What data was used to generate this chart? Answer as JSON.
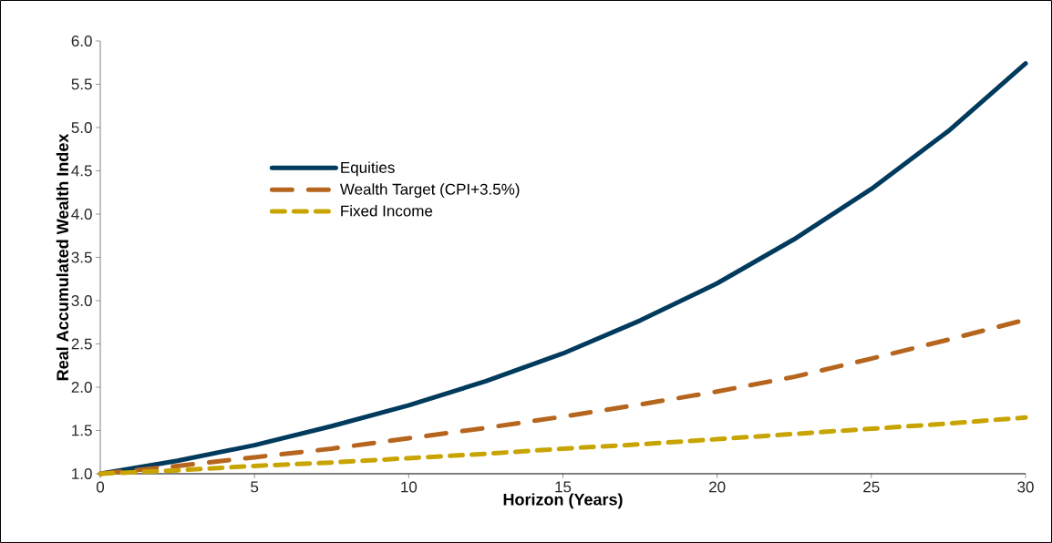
{
  "chart_data": {
    "type": "line",
    "xlabel": "Horizon (Years)",
    "ylabel": "Real Accumulated Wealth Index",
    "x": [
      0,
      2.5,
      5,
      7.5,
      10,
      12.5,
      15,
      17.5,
      20,
      22.5,
      25,
      27.5,
      30
    ],
    "series": [
      {
        "name": "Equities",
        "color": "#003a5c",
        "line_style": "solid",
        "values": [
          1.0,
          1.15,
          1.33,
          1.55,
          1.79,
          2.07,
          2.39,
          2.77,
          3.2,
          3.71,
          4.29,
          4.96,
          5.74
        ]
      },
      {
        "name": "Wealth Target (CPI+3.5%)",
        "color": "#b5651d",
        "line_style": "dashdot",
        "values": [
          1.0,
          1.09,
          1.19,
          1.29,
          1.41,
          1.53,
          1.66,
          1.8,
          1.95,
          2.12,
          2.33,
          2.55,
          2.78
        ]
      },
      {
        "name": "Fixed Income",
        "color": "#c8a400",
        "line_style": "dashed",
        "values": [
          1.0,
          1.04,
          1.09,
          1.13,
          1.18,
          1.23,
          1.29,
          1.34,
          1.4,
          1.46,
          1.52,
          1.58,
          1.65
        ]
      }
    ],
    "xlim": [
      0,
      30
    ],
    "xticks": [
      0,
      5,
      10,
      15,
      20,
      25,
      30
    ],
    "ylim": [
      1,
      6
    ],
    "yticks": [
      {
        "value": 1,
        "label": "1.0"
      },
      {
        "value": 1.5,
        "label": "1.5"
      },
      {
        "value": 2,
        "label": "2.0"
      },
      {
        "value": 2.5,
        "label": "2.5"
      },
      {
        "value": 3,
        "label": "3.0"
      },
      {
        "value": 3.5,
        "label": "3.5"
      },
      {
        "value": 4,
        "label": "4.0"
      },
      {
        "value": 4.5,
        "label": "4.5"
      },
      {
        "value": 5,
        "label": "5.0"
      },
      {
        "value": 5.5,
        "label": "5.5"
      },
      {
        "value": 6,
        "label": "6.0"
      }
    ],
    "grid": false,
    "legend": "left",
    "marker": "none"
  }
}
